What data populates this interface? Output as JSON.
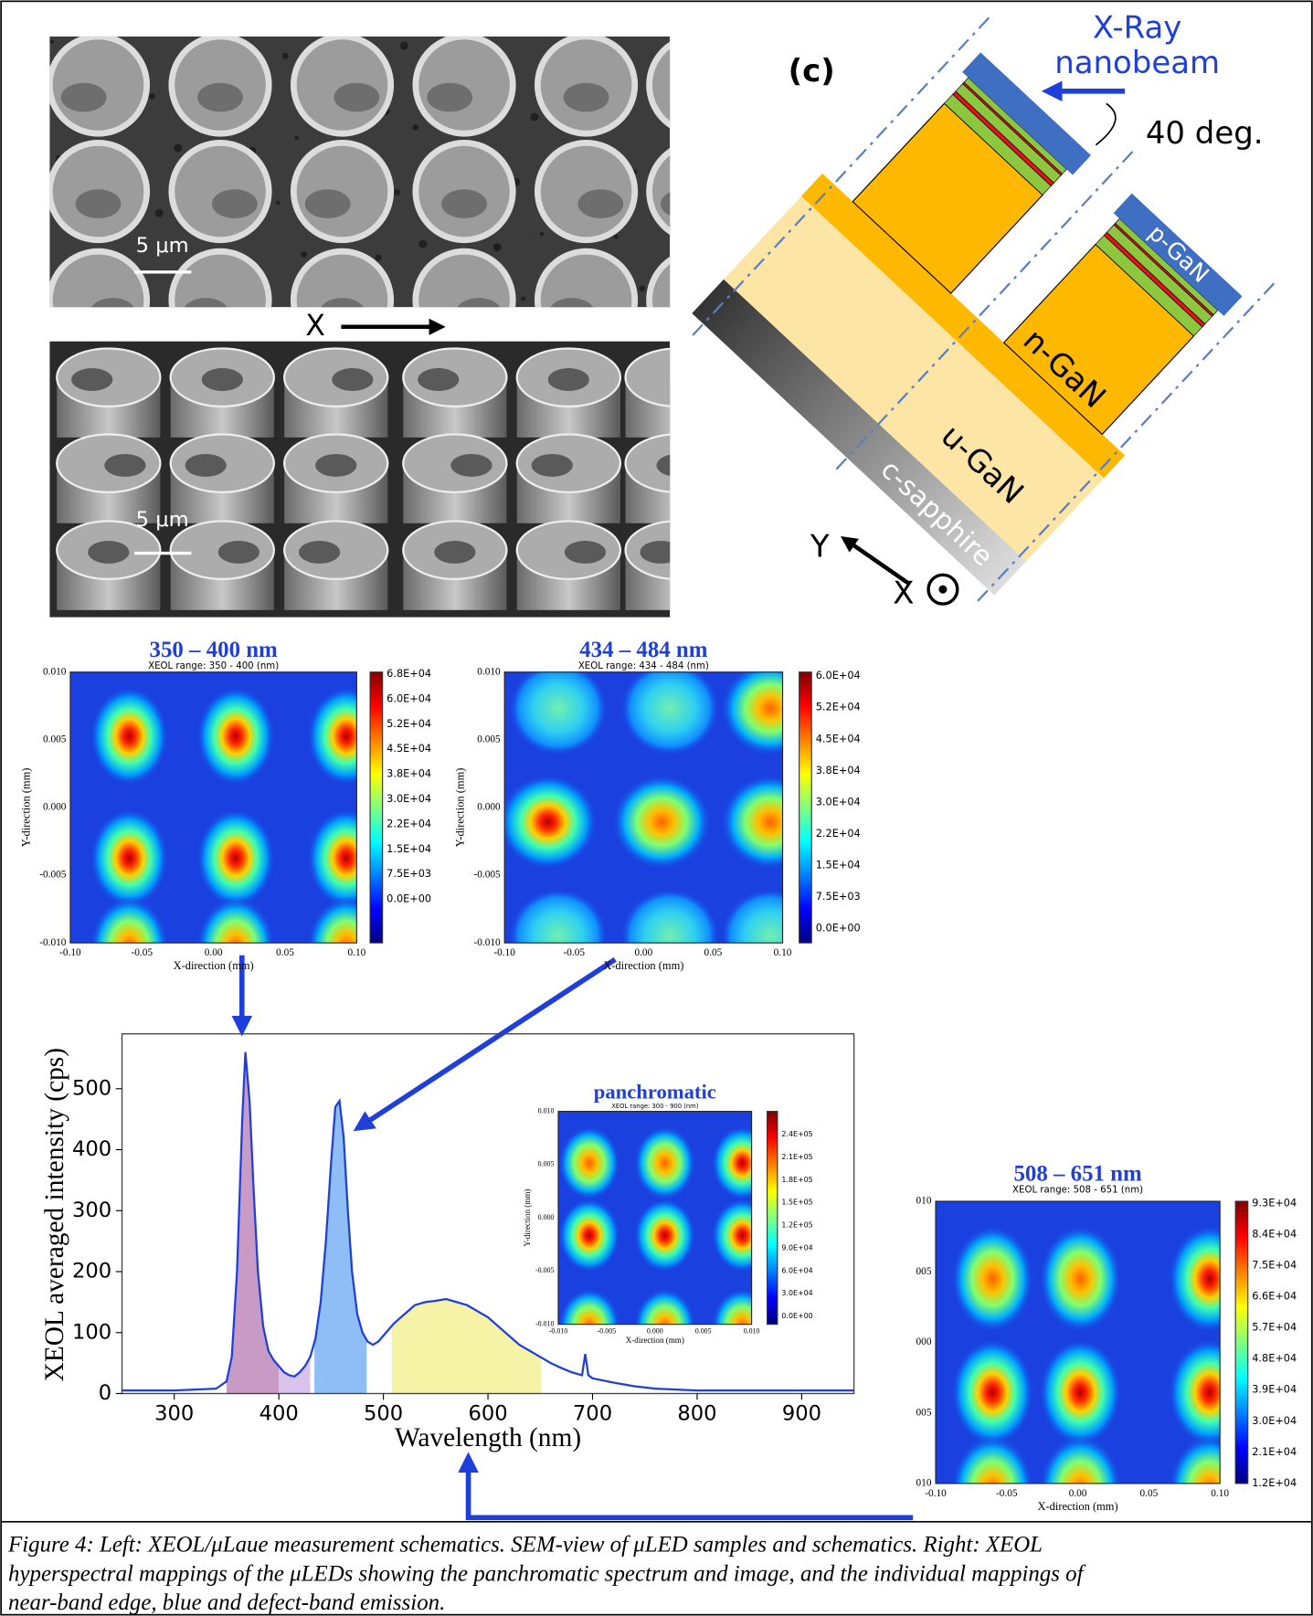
{
  "sem": {
    "top_scale_bar": "5 μm",
    "bottom_scale_bar": "5 μm",
    "axis_label": "X"
  },
  "schematic": {
    "panel_label": "(c)",
    "beam_label": [
      "X-Ray",
      "nanobeam"
    ],
    "angle": "40 deg.",
    "layers": {
      "p": "p-GaN",
      "n": "n-GaN",
      "u": "u-GaN",
      "substrate": "c-sapphire"
    },
    "axes": [
      "Y",
      "X"
    ]
  },
  "maps": [
    {
      "title": "350 – 400 nm",
      "subtitle": "XEOL range: 350 - 400 (nm)",
      "xticks": [
        "-0.10",
        "-0.05",
        "0.00",
        "0.05",
        "0.10"
      ],
      "yticks": [
        "0.010",
        "0.005",
        "0.000",
        "-0.005",
        "-0.010"
      ],
      "colorbar_ticks": [
        "6.8E+04",
        "6.0E+04",
        "5.2E+04",
        "4.5E+04",
        "3.8E+04",
        "3.0E+04",
        "2.2E+04",
        "1.5E+04",
        "7.5E+03",
        "0.0E+00"
      ],
      "xlabel": "X-direction (mm)",
      "ylabel": "Y-direction (mm)"
    },
    {
      "title": "434 – 484 nm",
      "subtitle": "XEOL range: 434 - 484 (nm)",
      "xticks": [
        "-0.10",
        "-0.05",
        "0.00",
        "0.05",
        "0.10"
      ],
      "yticks": [
        "0.010",
        "0.005",
        "0.000",
        "-0.005",
        "-0.010"
      ],
      "colorbar_ticks": [
        "6.0E+04",
        "5.2E+04",
        "4.5E+04",
        "3.8E+04",
        "3.0E+04",
        "2.2E+04",
        "1.5E+04",
        "7.5E+03",
        "0.0E+00"
      ],
      "xlabel": "X-direction (mm)",
      "ylabel": "Y-direction (mm)"
    },
    {
      "title": "panchromatic",
      "subtitle": "XEOL range: 300 - 900 (nm)",
      "xticks": [
        "-0.010",
        "-0.005",
        "0.000",
        "0.005",
        "0.010"
      ],
      "yticks": [
        "0.010",
        "0.005",
        "0.000",
        "-0.005",
        "-0.010"
      ],
      "colorbar_ticks": [
        "2.4E+05",
        "2.1E+05",
        "1.8E+05",
        "1.5E+05",
        "1.2E+05",
        "9.0E+04",
        "6.0E+04",
        "3.0E+04",
        "0.0E+00"
      ],
      "xlabel": "X-direction (mm)",
      "ylabel": "Y-direction (mm)"
    },
    {
      "title": "508 – 651 nm",
      "subtitle": "XEOL range: 508 - 651 (nm)",
      "xticks": [
        "-0.10",
        "-0.05",
        "0.00",
        "0.05",
        "0.10"
      ],
      "yticks": [
        "010",
        "005",
        "000",
        "005",
        "010"
      ],
      "colorbar_ticks": [
        "9.3E+04",
        "8.4E+04",
        "7.5E+04",
        "6.6E+04",
        "5.7E+04",
        "4.8E+04",
        "3.9E+04",
        "3.0E+04",
        "2.1E+04",
        "1.2E+04"
      ],
      "xlabel": "X-direction (mm)"
    }
  ],
  "chart_data": {
    "type": "line",
    "color": "#1f3fdc",
    "xlabel": "Wavelength (nm)",
    "ylabel": "XEOL averaged intensity (cps)",
    "x": [
      250,
      300,
      340,
      350,
      355,
      360,
      365,
      368,
      372,
      376,
      380,
      385,
      390,
      395,
      400,
      405,
      410,
      415,
      420,
      425,
      430,
      435,
      440,
      445,
      450,
      454,
      458,
      462,
      466,
      470,
      475,
      480,
      485,
      490,
      495,
      500,
      510,
      520,
      530,
      540,
      550,
      560,
      570,
      580,
      590,
      600,
      610,
      620,
      630,
      640,
      650,
      660,
      670,
      680,
      690,
      693,
      696,
      700,
      720,
      740,
      760,
      800,
      850,
      900,
      950
    ],
    "values": [
      5,
      5,
      8,
      20,
      60,
      200,
      450,
      560,
      480,
      330,
      200,
      110,
      70,
      55,
      45,
      35,
      30,
      28,
      35,
      45,
      60,
      90,
      150,
      250,
      380,
      470,
      480,
      420,
      300,
      200,
      130,
      100,
      85,
      80,
      85,
      95,
      115,
      130,
      145,
      150,
      152,
      155,
      150,
      145,
      135,
      125,
      110,
      95,
      80,
      70,
      60,
      50,
      42,
      35,
      30,
      65,
      30,
      25,
      18,
      12,
      8,
      5,
      5,
      5,
      5
    ],
    "bands": [
      {
        "from": 350,
        "to": 400,
        "color": "#c79bc6"
      },
      {
        "from": 400,
        "to": 430,
        "color": "#d9c3ec"
      },
      {
        "from": 434,
        "to": 484,
        "color": "#8fbdf5"
      },
      {
        "from": 508,
        "to": 651,
        "color": "#f6f3a6"
      }
    ],
    "xlim": [
      250,
      950
    ],
    "xticks": [
      300,
      400,
      500,
      600,
      700,
      800,
      900
    ],
    "ylim": [
      0,
      590
    ],
    "yticks": [
      0,
      100,
      200,
      300,
      400,
      500
    ]
  },
  "caption": {
    "lines": [
      "Figure 4: Left: XEOL/μLaue measurement schematics. SEM-view of μLED samples and schematics. Right: XEOL",
      "hyperspectral mappings of the μLEDs showing the panchromatic spectrum and image, and the individual mappings of",
      "near-band edge, blue and defect-band emission."
    ]
  }
}
